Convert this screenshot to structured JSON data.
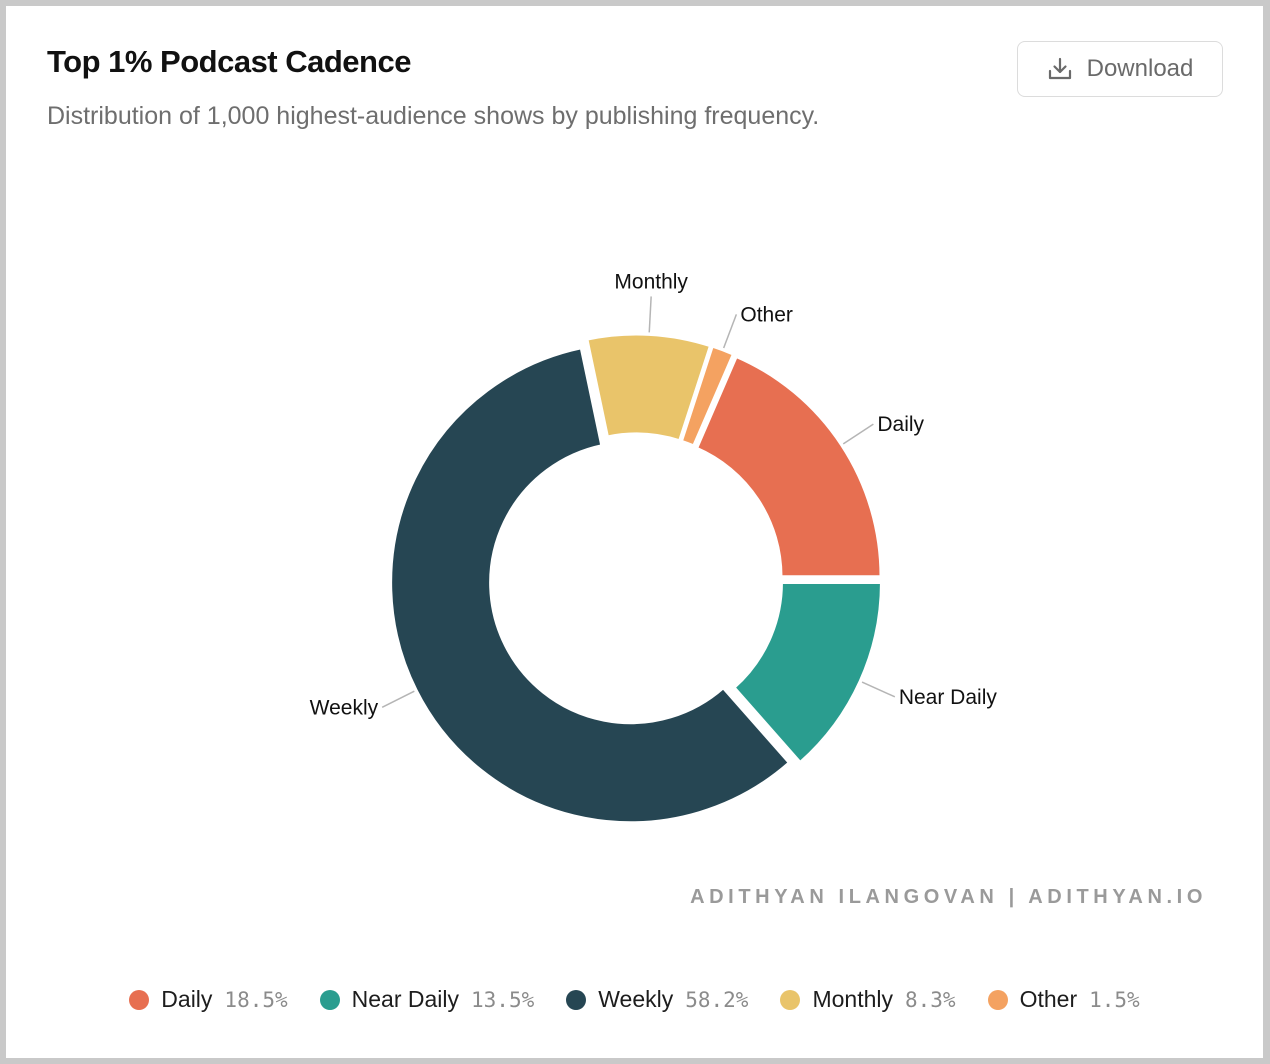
{
  "header": {
    "title": "Top 1% Podcast Cadence",
    "subtitle": "Distribution of 1,000 highest-audience shows by publishing frequency."
  },
  "toolbar": {
    "download_label": "Download",
    "download_icon": "download-icon"
  },
  "credit": "ADITHYAN ILANGOVAN | ADITHYAN.IO",
  "chart_data": {
    "type": "pie",
    "variant": "donut",
    "categories": [
      "Daily",
      "Near Daily",
      "Weekly",
      "Monthly",
      "Other"
    ],
    "values": [
      18.5,
      13.5,
      58.2,
      8.3,
      1.5
    ],
    "value_labels": [
      "18.5%",
      "13.5%",
      "58.2%",
      "8.3%",
      "1.5%"
    ],
    "colors": [
      "#e76f51",
      "#2a9d8f",
      "#264653",
      "#e9c46a",
      "#f4a261"
    ],
    "label_order": [
      "Daily",
      "Other",
      "Monthly",
      "Weekly",
      "Near Daily"
    ],
    "legend_position": "bottom"
  }
}
